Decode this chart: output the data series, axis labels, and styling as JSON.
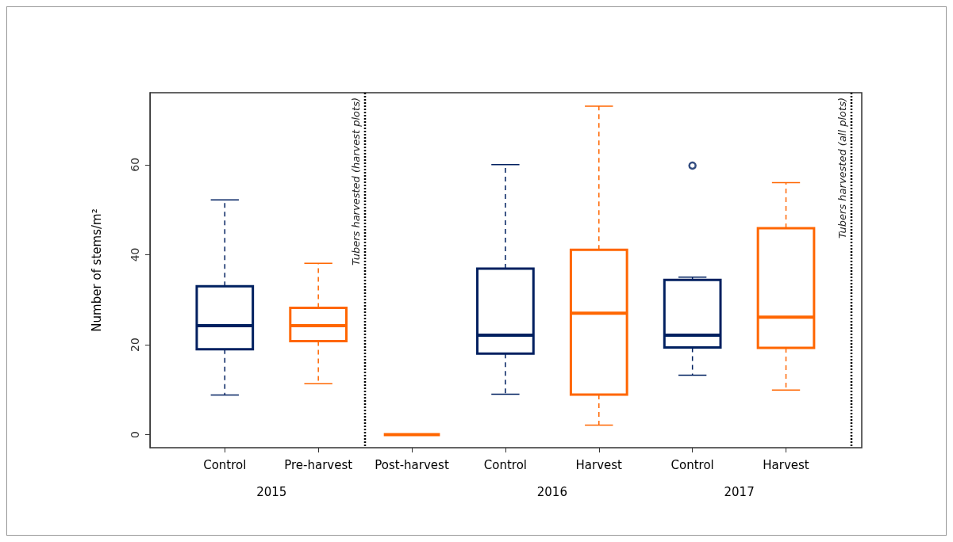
{
  "chart_data": {
    "type": "box",
    "ylabel": "Number of stems/m²",
    "categories": [
      "Control",
      "Pre-harvest",
      "Post-harvest",
      "Control",
      "Harvest",
      "Control",
      "Harvest"
    ],
    "colors": [
      "#002060",
      "#ff6600",
      "#ff6600",
      "#002060",
      "#ff6600",
      "#002060",
      "#ff6600"
    ],
    "boxes": [
      {
        "low": 8.8,
        "q1": 19.0,
        "median": 24.2,
        "q3": 33.0,
        "high": 52.2
      },
      {
        "low": 11.3,
        "q1": 20.8,
        "median": 24.2,
        "q3": 28.2,
        "high": 38.1
      },
      {
        "low": 0,
        "q1": 0,
        "median": 0,
        "q3": 0,
        "high": 0
      },
      {
        "low": 9.0,
        "q1": 18.0,
        "median": 22.1,
        "q3": 36.9,
        "high": 60.0
      },
      {
        "low": 2.1,
        "q1": 8.9,
        "median": 27.0,
        "q3": 41.1,
        "high": 73.0
      },
      {
        "low": 13.2,
        "q1": 19.4,
        "median": 22.1,
        "q3": 34.4,
        "high": 35.0,
        "outliers": [
          59.8
        ]
      },
      {
        "low": 9.9,
        "q1": 19.3,
        "median": 26.1,
        "q3": 45.9,
        "high": 56.0
      }
    ],
    "ylim": [
      -2.9,
      76
    ],
    "yticks": [
      0,
      20,
      40,
      60
    ],
    "grid": false,
    "annotations": [
      "Tubers harvested (harvest plots)",
      "Tubers harvested (all plots)",
      "2015",
      "2016",
      "2017"
    ]
  }
}
